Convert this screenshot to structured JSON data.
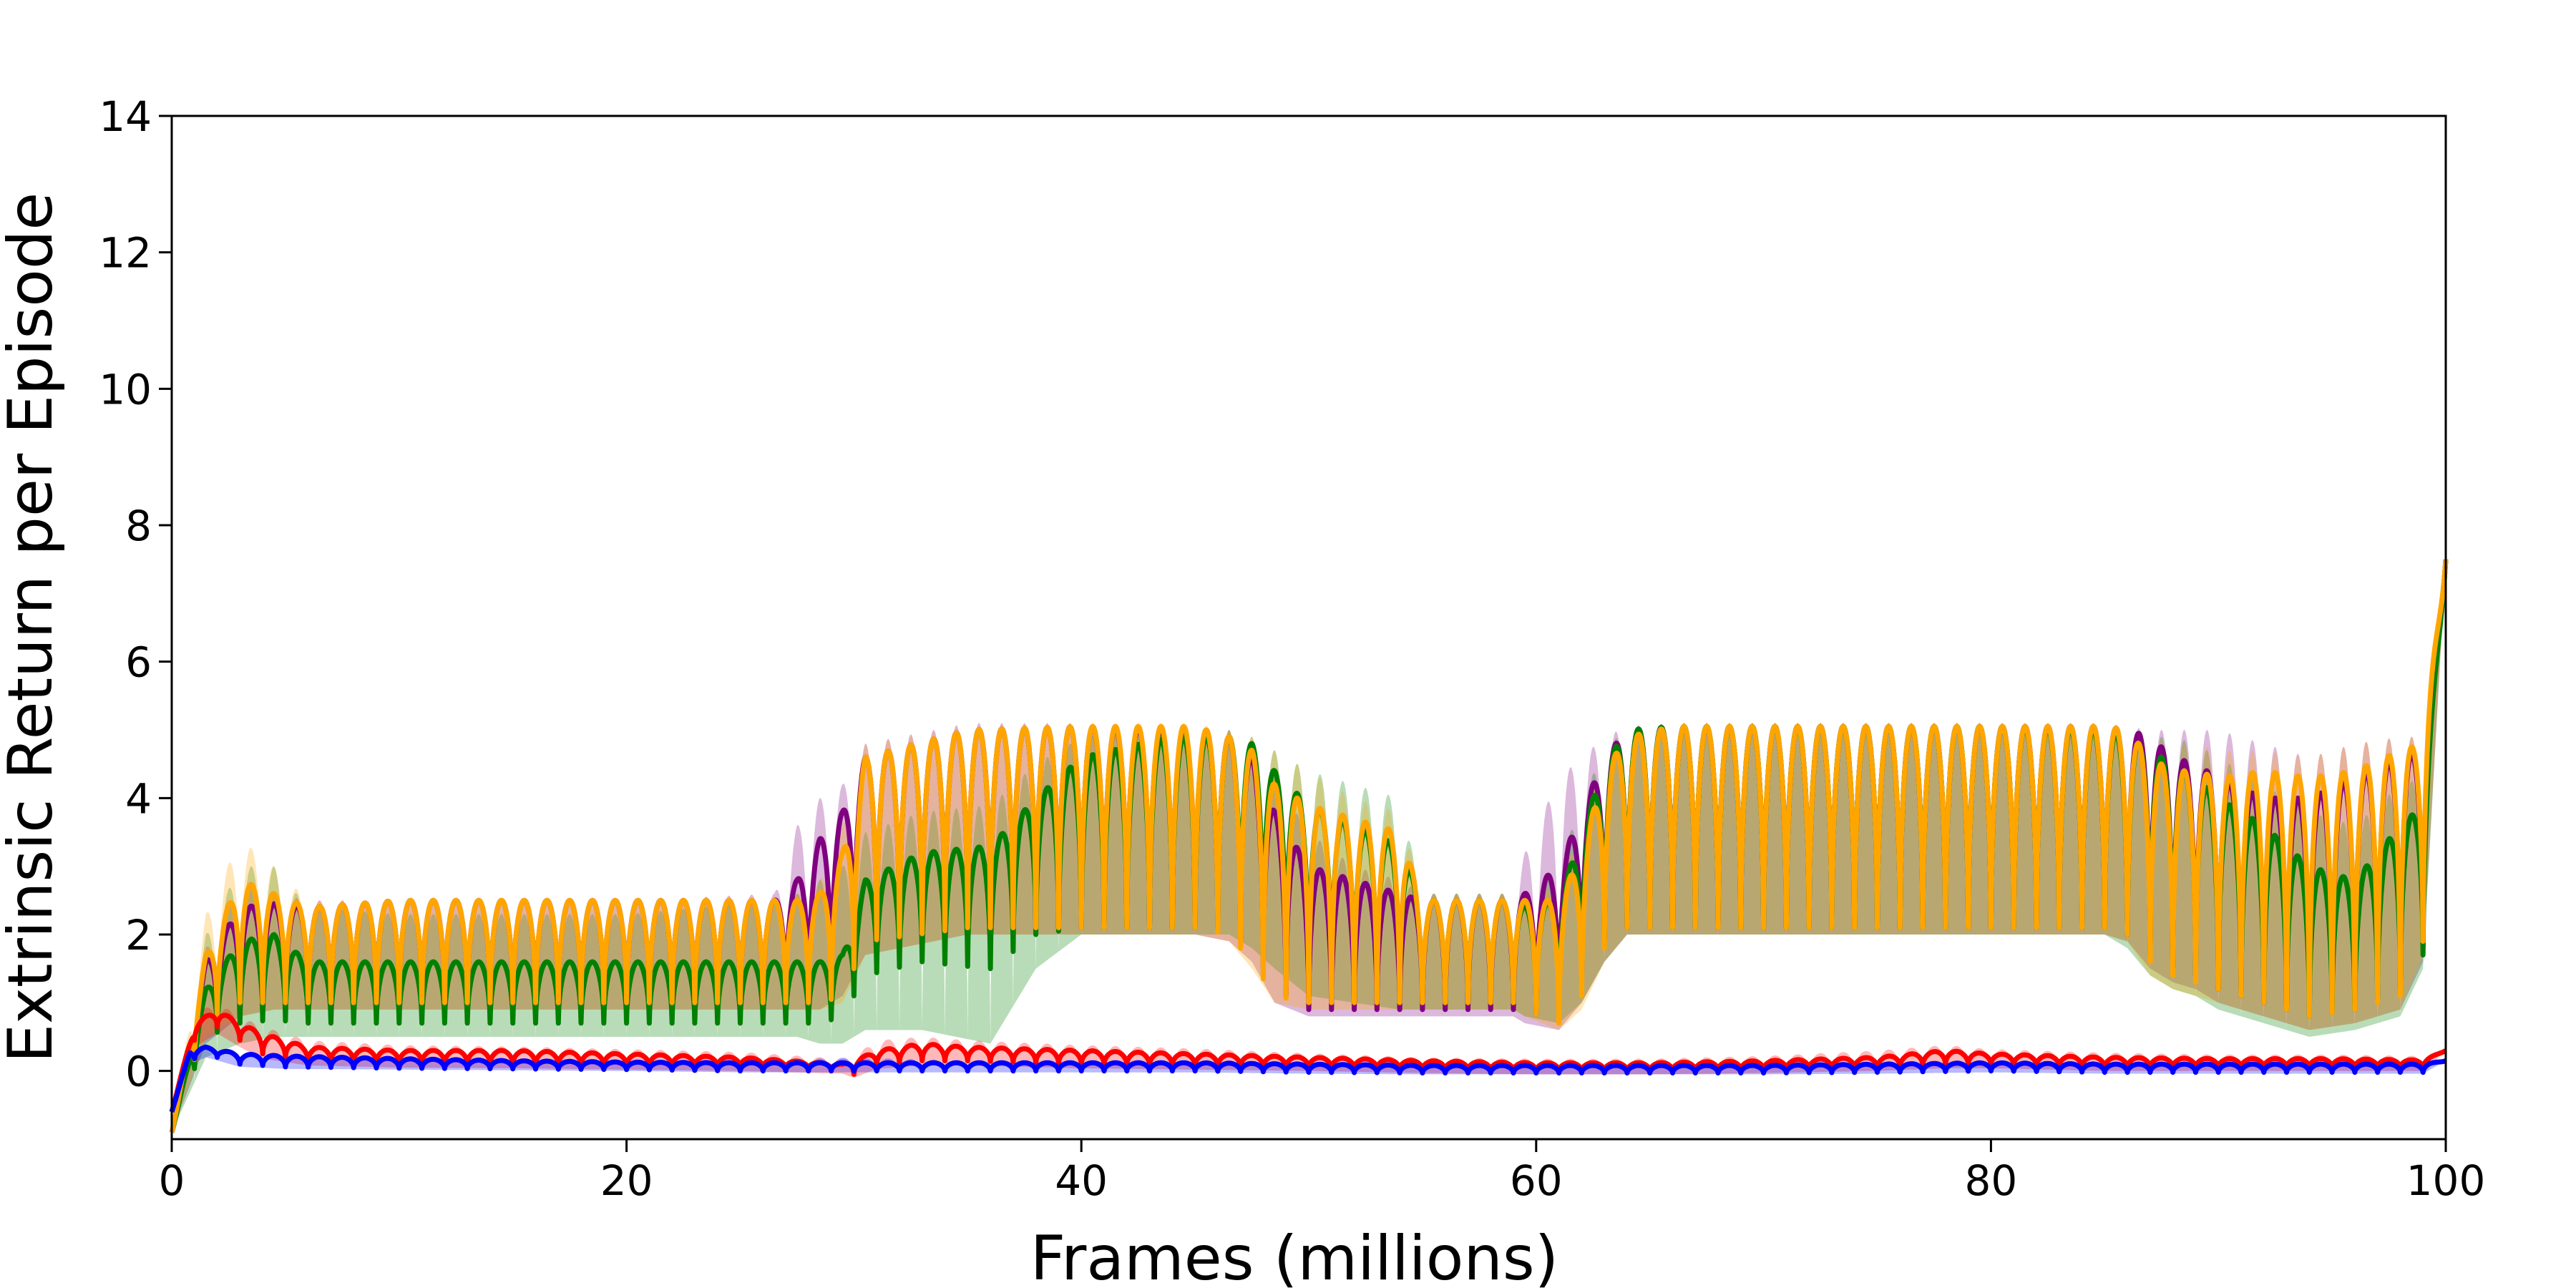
{
  "chart_data": {
    "type": "line",
    "xlabel": "Frames (millions)",
    "ylabel": "Extrinsic Return per Episode",
    "xlim": [
      0,
      100
    ],
    "ylim": [
      -1,
      14
    ],
    "xticks": [
      0,
      20,
      40,
      60,
      80,
      100
    ],
    "yticks": [
      0,
      2,
      4,
      6,
      8,
      10,
      12,
      14
    ],
    "xtick_labels": [
      "0",
      "20",
      "40",
      "60",
      "80",
      "100"
    ],
    "ytick_labels": [
      "0",
      "2",
      "4",
      "6",
      "8",
      "10",
      "12",
      "14"
    ],
    "grid": false,
    "legend": "none",
    "series": [
      {
        "color": "#800080",
        "x": [
          0,
          1.5,
          3,
          4.5,
          6,
          10,
          15,
          20,
          26.5,
          27.5,
          28.5,
          29.5,
          30.5,
          35,
          40,
          45,
          46.5,
          47.5,
          48.5,
          50,
          52,
          54,
          55,
          57,
          59,
          59.5,
          61,
          62,
          63,
          64,
          66,
          70,
          75,
          80,
          85,
          86,
          87,
          88,
          89,
          90,
          92,
          94,
          96,
          98,
          99,
          100
        ],
        "upper": [
          -0.9,
          1.6,
          2.4,
          2.45,
          2.4,
          2.5,
          2.5,
          2.5,
          2.5,
          2.8,
          3.4,
          3.8,
          4.6,
          5.0,
          5.05,
          5.0,
          4.9,
          4.6,
          3.8,
          3.0,
          2.8,
          2.6,
          2.5,
          2.5,
          2.5,
          2.6,
          3.0,
          3.8,
          4.6,
          5.0,
          5.05,
          5.05,
          5.05,
          5.05,
          5.05,
          5.0,
          4.9,
          4.6,
          4.5,
          4.3,
          4.0,
          4.0,
          4.3,
          4.6,
          4.7,
          7.5
        ],
        "lower": [
          -0.9,
          0.6,
          0.95,
          1.0,
          1.0,
          1.0,
          1.0,
          1.0,
          1.0,
          1.0,
          1.05,
          1.3,
          1.9,
          2.1,
          2.1,
          2.1,
          2.05,
          1.8,
          1.2,
          0.9,
          0.9,
          0.9,
          0.9,
          0.9,
          0.9,
          0.8,
          0.9,
          1.3,
          1.9,
          2.1,
          2.1,
          2.1,
          2.1,
          2.1,
          2.1,
          2.0,
          1.7,
          1.5,
          1.4,
          1.2,
          1.0,
          0.9,
          1.0,
          1.2,
          1.8,
          7.5
        ],
        "band_upper": [
          -0.9,
          1.8,
          2.7,
          2.6,
          2.5,
          2.5,
          2.5,
          2.5,
          2.6,
          3.6,
          4.0,
          4.2,
          4.8,
          5.1,
          5.1,
          5.05,
          5.0,
          4.8,
          4.3,
          3.5,
          3.0,
          2.8,
          2.6,
          2.6,
          2.6,
          3.2,
          4.3,
          4.6,
          4.9,
          5.05,
          5.1,
          5.1,
          5.1,
          5.1,
          5.1,
          5.05,
          5.0,
          5.0,
          5.0,
          5.0,
          4.8,
          4.6,
          4.8,
          4.9,
          4.9,
          7.5
        ],
        "band_lower": [
          -0.9,
          0.4,
          0.8,
          0.9,
          0.9,
          0.9,
          0.9,
          0.9,
          0.9,
          0.9,
          0.9,
          1.1,
          1.7,
          2.0,
          2.0,
          2.0,
          1.9,
          1.6,
          1.0,
          0.8,
          0.8,
          0.8,
          0.8,
          0.8,
          0.8,
          0.7,
          0.6,
          1.0,
          1.6,
          2.0,
          2.0,
          2.0,
          2.0,
          2.0,
          2.0,
          1.9,
          1.5,
          1.3,
          1.2,
          1.0,
          0.8,
          0.6,
          0.7,
          0.9,
          1.6,
          7.5
        ],
        "cycle": 1.0
      },
      {
        "color": "#008000",
        "x": [
          0,
          1.5,
          3,
          4.5,
          6,
          10,
          15,
          20,
          26.5,
          27.5,
          28.5,
          29.5,
          30.5,
          33,
          36,
          38,
          40,
          44,
          46.5,
          47.5,
          48.5,
          50,
          52,
          54,
          55,
          57,
          59,
          59.5,
          61,
          62,
          63,
          64,
          66,
          70,
          75,
          80,
          85,
          86,
          87,
          88,
          89,
          90,
          92,
          94,
          96,
          98,
          99,
          100
        ],
        "upper": [
          -0.9,
          1.2,
          1.9,
          2.0,
          1.6,
          1.6,
          1.6,
          1.6,
          1.6,
          1.6,
          1.6,
          1.7,
          2.8,
          3.2,
          3.3,
          4.0,
          4.6,
          4.9,
          4.9,
          4.8,
          4.4,
          3.9,
          3.6,
          3.3,
          2.5,
          2.5,
          2.5,
          2.4,
          2.5,
          3.5,
          4.5,
          5.0,
          5.05,
          5.05,
          5.05,
          5.05,
          5.0,
          4.9,
          4.7,
          4.5,
          4.3,
          4.0,
          3.6,
          3.0,
          2.8,
          3.6,
          3.9,
          7.5
        ],
        "lower": [
          -0.9,
          0.5,
          0.7,
          0.75,
          0.7,
          0.7,
          0.7,
          0.7,
          0.7,
          0.7,
          0.7,
          0.8,
          1.4,
          1.6,
          1.5,
          2.0,
          2.1,
          2.1,
          2.1,
          2.0,
          1.7,
          1.3,
          1.2,
          1.1,
          1.0,
          1.0,
          1.0,
          0.9,
          0.9,
          1.3,
          1.9,
          2.1,
          2.1,
          2.1,
          2.1,
          2.1,
          2.1,
          2.0,
          1.7,
          1.5,
          1.4,
          1.2,
          1.0,
          0.8,
          0.9,
          1.2,
          1.7,
          7.5
        ],
        "band_upper": [
          -0.9,
          2.0,
          3.0,
          3.0,
          2.4,
          2.3,
          2.3,
          2.3,
          2.5,
          2.6,
          2.8,
          3.0,
          3.5,
          3.8,
          3.9,
          4.5,
          4.9,
          5.0,
          5.0,
          4.9,
          4.7,
          4.4,
          4.2,
          4.0,
          2.6,
          2.6,
          2.6,
          2.6,
          3.0,
          4.0,
          4.7,
          5.05,
          5.1,
          5.1,
          5.1,
          5.1,
          5.05,
          5.0,
          4.9,
          4.9,
          4.8,
          4.6,
          4.2,
          3.8,
          3.6,
          4.2,
          4.3,
          7.5
        ],
        "band_lower": [
          -0.9,
          0.2,
          0.4,
          0.5,
          0.5,
          0.5,
          0.5,
          0.5,
          0.5,
          0.5,
          0.4,
          0.4,
          0.6,
          0.6,
          0.4,
          1.5,
          2.0,
          2.0,
          2.0,
          1.8,
          1.5,
          1.1,
          1.0,
          0.9,
          0.9,
          0.9,
          0.9,
          0.8,
          0.7,
          1.0,
          1.6,
          2.0,
          2.0,
          2.0,
          2.0,
          2.0,
          2.0,
          1.8,
          1.4,
          1.2,
          1.1,
          0.9,
          0.7,
          0.5,
          0.6,
          0.8,
          1.5,
          7.5
        ],
        "cycle": 1.0
      },
      {
        "color": "#FFA500",
        "x": [
          0,
          1.5,
          3,
          4.5,
          6,
          10,
          15,
          20,
          26.5,
          27.5,
          28.5,
          29.5,
          30.5,
          35,
          40,
          45,
          46.5,
          47.5,
          48.5,
          50,
          52,
          54,
          55,
          57,
          59,
          59.5,
          61,
          62,
          63,
          64,
          66,
          70,
          75,
          80,
          85,
          86,
          87,
          88,
          89,
          90,
          92,
          94,
          96,
          98,
          99,
          100
        ],
        "upper": [
          -0.9,
          1.7,
          2.8,
          2.6,
          2.4,
          2.5,
          2.5,
          2.5,
          2.5,
          2.5,
          2.6,
          3.2,
          4.6,
          5.0,
          5.05,
          5.05,
          4.9,
          4.7,
          4.2,
          3.9,
          3.7,
          3.5,
          2.5,
          2.5,
          2.5,
          2.5,
          2.5,
          3.2,
          4.4,
          4.9,
          5.05,
          5.05,
          5.05,
          5.05,
          5.05,
          5.0,
          4.6,
          4.4,
          4.4,
          4.3,
          4.4,
          4.3,
          4.4,
          4.7,
          4.8,
          7.5
        ],
        "lower": [
          -0.9,
          0.7,
          1.0,
          1.0,
          1.0,
          1.0,
          1.0,
          1.0,
          1.0,
          1.0,
          1.0,
          1.1,
          1.9,
          2.1,
          2.1,
          2.1,
          2.0,
          1.6,
          1.1,
          1.0,
          1.0,
          1.0,
          1.0,
          1.0,
          1.0,
          0.9,
          0.7,
          1.1,
          1.8,
          2.1,
          2.1,
          2.1,
          2.1,
          2.1,
          2.1,
          2.0,
          1.6,
          1.4,
          1.3,
          1.2,
          1.0,
          0.8,
          0.9,
          1.1,
          1.9,
          7.5
        ],
        "band_upper": [
          -0.9,
          2.3,
          3.4,
          3.0,
          2.5,
          2.5,
          2.5,
          2.5,
          2.5,
          2.6,
          2.8,
          3.6,
          4.8,
          5.05,
          5.1,
          5.1,
          5.0,
          4.9,
          4.7,
          4.4,
          4.0,
          3.8,
          2.6,
          2.6,
          2.6,
          2.6,
          2.7,
          3.6,
          4.7,
          5.0,
          5.1,
          5.1,
          5.1,
          5.1,
          5.1,
          5.05,
          4.9,
          4.8,
          4.8,
          4.7,
          4.7,
          4.6,
          4.8,
          4.9,
          4.9,
          7.5
        ],
        "band_lower": [
          -0.9,
          0.5,
          0.8,
          0.9,
          0.9,
          0.9,
          0.9,
          0.9,
          0.9,
          0.9,
          0.9,
          1.0,
          1.7,
          2.0,
          2.0,
          2.0,
          1.9,
          1.5,
          1.0,
          0.9,
          0.9,
          0.9,
          0.9,
          0.9,
          0.9,
          0.8,
          0.6,
          0.9,
          1.6,
          2.0,
          2.0,
          2.0,
          2.0,
          2.0,
          2.0,
          1.9,
          1.4,
          1.2,
          1.1,
          1.0,
          0.8,
          0.6,
          0.7,
          0.9,
          1.7,
          7.5
        ],
        "cycle": 1.0
      },
      {
        "color": "#FF0000",
        "x": [
          0,
          1,
          2,
          3,
          4,
          6,
          10,
          15,
          20,
          25,
          29.5,
          30,
          31,
          33,
          35,
          40,
          45,
          50,
          55,
          60,
          65,
          70,
          75,
          78,
          80,
          85,
          90,
          95,
          99,
          100
        ],
        "upper": [
          -0.6,
          0.7,
          0.9,
          0.7,
          0.55,
          0.35,
          0.3,
          0.3,
          0.25,
          0.2,
          0.1,
          0.15,
          0.3,
          0.4,
          0.35,
          0.3,
          0.25,
          0.2,
          0.15,
          0.12,
          0.12,
          0.15,
          0.2,
          0.3,
          0.25,
          0.2,
          0.18,
          0.18,
          0.16,
          0.3
        ],
        "lower": [
          -0.6,
          0.45,
          0.65,
          0.45,
          0.25,
          0.15,
          0.12,
          0.1,
          0.08,
          0.06,
          0.02,
          -0.05,
          0.1,
          0.15,
          0.15,
          0.1,
          0.08,
          0.05,
          0.02,
          0.0,
          0.0,
          0.02,
          0.05,
          0.1,
          0.1,
          0.05,
          0.05,
          0.05,
          0.05,
          0.3
        ],
        "band_upper": [
          -0.6,
          0.85,
          1.0,
          0.8,
          0.65,
          0.45,
          0.38,
          0.36,
          0.32,
          0.28,
          0.18,
          0.22,
          0.45,
          0.5,
          0.45,
          0.38,
          0.33,
          0.26,
          0.2,
          0.18,
          0.18,
          0.22,
          0.3,
          0.38,
          0.32,
          0.27,
          0.24,
          0.24,
          0.22,
          0.3
        ],
        "band_lower": [
          -0.6,
          0.35,
          0.55,
          0.35,
          0.18,
          0.08,
          0.05,
          0.04,
          0.02,
          0.0,
          -0.04,
          -0.1,
          0.03,
          0.08,
          0.08,
          0.04,
          0.02,
          0.0,
          -0.03,
          -0.05,
          -0.05,
          -0.03,
          0.0,
          0.04,
          0.04,
          0.0,
          0.0,
          0.0,
          0.0,
          0.3
        ],
        "cycle": 1.0
      },
      {
        "color": "#0000FF",
        "x": [
          0,
          0.8,
          1.5,
          3,
          5,
          10,
          15,
          20,
          25,
          30,
          35,
          40,
          45,
          50,
          55,
          60,
          65,
          70,
          75,
          80,
          85,
          90,
          95,
          99,
          100
        ],
        "upper": [
          -0.6,
          0.3,
          0.35,
          0.25,
          0.22,
          0.18,
          0.15,
          0.13,
          0.12,
          0.12,
          0.12,
          0.12,
          0.12,
          0.1,
          0.08,
          0.08,
          0.08,
          0.08,
          0.1,
          0.12,
          0.1,
          0.1,
          0.1,
          0.1,
          0.15
        ],
        "lower": [
          -0.6,
          0.15,
          0.25,
          0.1,
          0.06,
          0.04,
          0.03,
          0.02,
          0.0,
          0.0,
          0.0,
          0.0,
          0.0,
          -0.02,
          -0.03,
          -0.03,
          -0.03,
          -0.03,
          -0.02,
          0.0,
          -0.02,
          -0.02,
          -0.02,
          -0.02,
          0.15
        ],
        "band_upper": [
          -0.6,
          0.34,
          0.38,
          0.28,
          0.25,
          0.2,
          0.17,
          0.15,
          0.14,
          0.2,
          0.15,
          0.14,
          0.14,
          0.12,
          0.1,
          0.1,
          0.1,
          0.1,
          0.12,
          0.14,
          0.12,
          0.12,
          0.12,
          0.12,
          0.15
        ],
        "band_lower": [
          -0.6,
          0.1,
          0.2,
          0.06,
          0.03,
          0.02,
          0.01,
          0.0,
          -0.02,
          -0.02,
          -0.02,
          -0.02,
          -0.02,
          -0.04,
          -0.05,
          -0.05,
          -0.05,
          -0.05,
          -0.04,
          -0.02,
          -0.04,
          -0.04,
          -0.04,
          -0.04,
          0.15
        ],
        "cycle": 1.0
      }
    ]
  }
}
